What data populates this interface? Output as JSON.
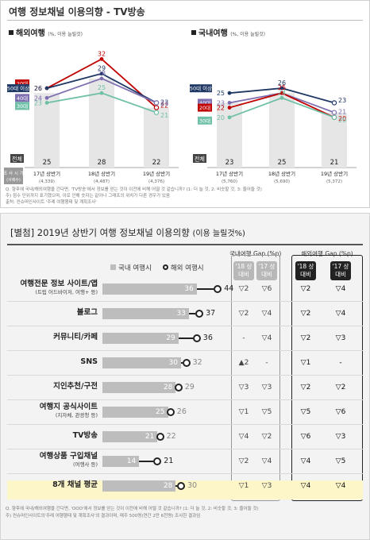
{
  "top": {
    "title": "여행 정보채널 이용의향 - TV방송",
    "age_period_label": "조 사 시 기",
    "age_period_sub": "(사례수)",
    "total_label": "전체",
    "notes": [
      "Q. 향후에 국내/해외여행을 간다면, 'TV방송'에서 정보를 얻는 것이 이전에 비해 어떨 것 같습니까? (1: 더 늘 것, 2: 비슷할 것, 3: 줄어들 것)",
      "주) 점수 단위까지 표기했으며, 이로 인해 숫자는 같아나 그래프의 위치가 다른 경우가 있음",
      "출처: 컨슈머인사이트 '주례 여행행태 및 계획조사'"
    ],
    "panels": [
      {
        "title": "해외여행",
        "unit": "(%, 이용 늘릴것)",
        "periods": [
          "17년 상반기",
          "18년 상반기",
          "19년 상반기"
        ],
        "counts": [
          "(4,339)",
          "(4,487)",
          "(4,376)"
        ],
        "total": [
          25,
          28,
          22
        ],
        "series": [
          {
            "name": "20대",
            "color": "#c00000",
            "values": [
              26,
              32,
              22
            ]
          },
          {
            "name": "50대 이상",
            "color": "#1f3864",
            "values": [
              26,
              29,
              23
            ]
          },
          {
            "name": "40대",
            "color": "#7f6fb0",
            "values": [
              24,
              28,
              23
            ]
          },
          {
            "name": "30대",
            "color": "#70c0a8",
            "values": [
              23,
              25,
              21
            ]
          }
        ],
        "label_order": [
          "20대",
          "50대 이상",
          "40대",
          "30대"
        ]
      },
      {
        "title": "국내여행",
        "unit": "(%, 이용 늘릴것)",
        "periods": [
          "17년 상반기",
          "18년 상반기",
          "19년 상반기"
        ],
        "counts": [
          "(5,760)",
          "(5,690)",
          "(5,372)"
        ],
        "total": [
          23,
          25,
          21
        ],
        "series": [
          {
            "name": "50대 이상",
            "color": "#1f3864",
            "values": [
              25,
              26,
              23
            ]
          },
          {
            "name": "40대",
            "color": "#7f6fb0",
            "values": [
              23,
              25,
              21
            ]
          },
          {
            "name": "20대",
            "color": "#c00000",
            "values": [
              22,
              25,
              20
            ]
          },
          {
            "name": "30대",
            "color": "#70c0a8",
            "values": [
              20,
              24,
              20
            ]
          }
        ],
        "label_order": [
          "50대 이상",
          "40대",
          "20대",
          "30대"
        ]
      }
    ]
  },
  "bottom": {
    "title": "[별첨] 2019년 상반기 여행 정보채널 이용의향",
    "subtitle": "(이용 늘릴것%)",
    "legend_domestic": "국내 여행시",
    "legend_overseas": "해외 여행시",
    "group_domestic": "국내여행 Gap (%p)",
    "group_overseas": "해외여행 Gap (%p)",
    "col_headers": [
      "'18 상 대비",
      "'17 상 대비",
      "'18 상 대비",
      "'17 상 대비"
    ],
    "notes": [
      "Q. 향후에 국내/해외여행을 간다면, 'OOO'에서 정보를 얻는 것이 이전에 비해 어떨 것 같습니까? (1: 더 늘 것, 2: 비슷할 것, 3: 줄어들 것)",
      "주) 컨슈머인사이트의'주례 여행행태 및 계획조사'의 결과이며, 매주 500명(연간 2만 6천명) 조사한 결과임"
    ]
  },
  "chart_data": [
    {
      "type": "line",
      "title": "여행 정보채널 이용의향 - TV방송 : 해외여행",
      "ylabel": "(%, 이용 늘릴것)",
      "x": [
        "17년 상반기",
        "18년 상반기",
        "19년 상반기"
      ],
      "series": [
        {
          "name": "전체",
          "values": [
            25,
            28,
            22
          ]
        },
        {
          "name": "20대",
          "values": [
            26,
            32,
            22
          ]
        },
        {
          "name": "30대",
          "values": [
            23,
            25,
            21
          ]
        },
        {
          "name": "40대",
          "values": [
            24,
            28,
            23
          ]
        },
        {
          "name": "50대 이상",
          "values": [
            26,
            29,
            23
          ]
        }
      ]
    },
    {
      "type": "line",
      "title": "여행 정보채널 이용의향 - TV방송 : 국내여행",
      "ylabel": "(%, 이용 늘릴것)",
      "x": [
        "17년 상반기",
        "18년 상반기",
        "19년 상반기"
      ],
      "series": [
        {
          "name": "전체",
          "values": [
            23,
            25,
            21
          ]
        },
        {
          "name": "20대",
          "values": [
            22,
            25,
            20
          ]
        },
        {
          "name": "30대",
          "values": [
            20,
            24,
            20
          ]
        },
        {
          "name": "40대",
          "values": [
            23,
            25,
            21
          ]
        },
        {
          "name": "50대 이상",
          "values": [
            25,
            26,
            23
          ]
        }
      ]
    },
    {
      "type": "bar",
      "title": "[별첨] 2019년 상반기 여행 정보채널 이용의향",
      "xlim": [
        0,
        50
      ],
      "categories": [
        {
          "label": "여행전문 정보 사이트/앱",
          "sub": "(트립 어드바이저, 여행+ 등)",
          "domestic": 36,
          "overseas": 44,
          "dom_vs18": "▽2",
          "dom_vs17": "▽6",
          "ovs_vs18": "▽2",
          "ovs_vs17": "▽4"
        },
        {
          "label": "블로그",
          "sub": "",
          "domestic": 33,
          "overseas": 37,
          "dom_vs18": "▽2",
          "dom_vs17": "▽4",
          "ovs_vs18": "▽2",
          "ovs_vs17": "▽4"
        },
        {
          "label": "커뮤니티/카페",
          "sub": "",
          "domestic": 29,
          "overseas": 36,
          "dom_vs18": "-",
          "dom_vs17": "▽4",
          "ovs_vs18": "▽2",
          "ovs_vs17": "▽3"
        },
        {
          "label": "SNS",
          "sub": "",
          "domestic": 30,
          "overseas": 32,
          "dom_vs18": "▲2",
          "dom_vs17": "-",
          "ovs_vs18": "▽1",
          "ovs_vs17": "-"
        },
        {
          "label": "지인추천/구전",
          "sub": "",
          "domestic": 28,
          "overseas": 29,
          "dom_vs18": "▽3",
          "dom_vs17": "▽3",
          "ovs_vs18": "▽2",
          "ovs_vs17": "▽2"
        },
        {
          "label": "여행지 공식사이트",
          "sub": "(지자체, 관광청 등)",
          "domestic": 25,
          "overseas": 26,
          "dom_vs18": "▽1",
          "dom_vs17": "▽5",
          "ovs_vs18": "▽5",
          "ovs_vs17": "▽6"
        },
        {
          "label": "TV방송",
          "sub": "",
          "domestic": 21,
          "overseas": 22,
          "dom_vs18": "▽4",
          "dom_vs17": "▽2",
          "ovs_vs18": "▽6",
          "ovs_vs17": "▽3"
        },
        {
          "label": "여행상품 구입채널",
          "sub": "(여행사 등)",
          "domestic": 14,
          "overseas": 21,
          "dom_vs18": "▽2",
          "dom_vs17": "▽4",
          "ovs_vs18": "▽4",
          "ovs_vs17": "▽5"
        },
        {
          "label": "8개 채널 평균",
          "sub": "",
          "domestic": 28,
          "overseas": 30,
          "dom_vs18": "▽1",
          "dom_vs17": "▽3",
          "ovs_vs18": "▽4",
          "ovs_vs17": "▽4"
        }
      ]
    }
  ]
}
